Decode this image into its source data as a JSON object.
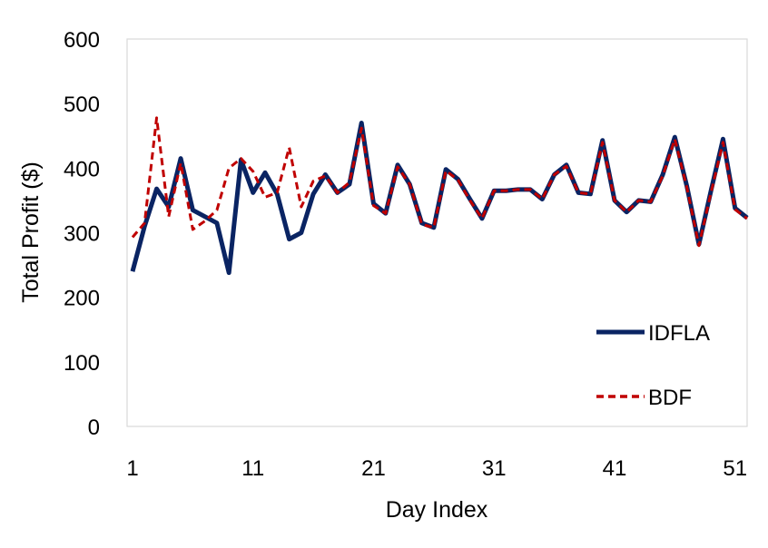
{
  "chart_data": {
    "type": "line",
    "xlabel": "Day Index",
    "ylabel": "Total Profit ($)",
    "xlim": [
      1,
      52
    ],
    "ylim": [
      0,
      600
    ],
    "x_ticks": [
      1,
      11,
      21,
      31,
      41,
      51
    ],
    "y_ticks": [
      0,
      100,
      200,
      300,
      400,
      500,
      600
    ],
    "grid": false,
    "legend_position": "bottom-right",
    "x": [
      1,
      2,
      3,
      4,
      5,
      6,
      7,
      8,
      9,
      10,
      11,
      12,
      13,
      14,
      15,
      16,
      17,
      18,
      19,
      20,
      21,
      22,
      23,
      24,
      25,
      26,
      27,
      28,
      29,
      30,
      31,
      32,
      33,
      34,
      35,
      36,
      37,
      38,
      39,
      40,
      41,
      42,
      43,
      44,
      45,
      46,
      47,
      48,
      49,
      50,
      51,
      52
    ],
    "series": [
      {
        "name": "IDFLA",
        "color": "#0a2463",
        "style": "solid",
        "values": [
          240,
          310,
          368,
          340,
          415,
          335,
          325,
          315,
          238,
          413,
          362,
          393,
          360,
          290,
          300,
          360,
          390,
          362,
          375,
          470,
          345,
          330,
          405,
          375,
          315,
          308,
          398,
          383,
          352,
          322,
          365,
          365,
          367,
          367,
          352,
          390,
          405,
          362,
          360,
          443,
          350,
          332,
          350,
          348,
          390,
          448,
          372,
          282,
          365,
          445,
          338,
          323
        ]
      },
      {
        "name": "BDF",
        "color": "#c00000",
        "style": "dashed",
        "values": [
          293,
          315,
          478,
          325,
          408,
          305,
          318,
          335,
          400,
          415,
          395,
          355,
          362,
          432,
          340,
          380,
          388,
          362,
          378,
          462,
          342,
          330,
          402,
          375,
          313,
          308,
          396,
          382,
          350,
          322,
          365,
          365,
          367,
          367,
          352,
          390,
          403,
          362,
          360,
          440,
          350,
          332,
          350,
          348,
          388,
          445,
          370,
          280,
          362,
          440,
          336,
          322
        ]
      }
    ]
  }
}
